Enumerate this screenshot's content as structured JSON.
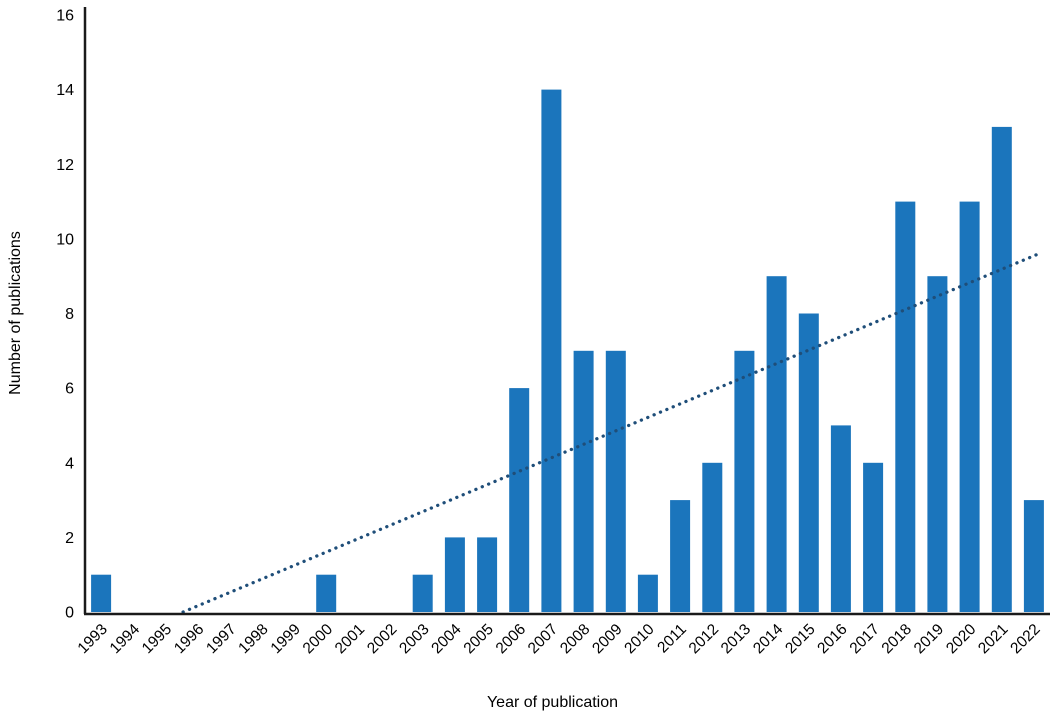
{
  "chart_data": {
    "type": "bar",
    "title": "",
    "xlabel": "Year of publication",
    "ylabel": "Number of publications",
    "categories": [
      "1993",
      "1994",
      "1995",
      "1996",
      "1997",
      "1998",
      "1999",
      "2000",
      "2001",
      "2002",
      "2003",
      "2004",
      "2005",
      "2006",
      "2007",
      "2008",
      "2009",
      "2010",
      "2011",
      "2012",
      "2013",
      "2014",
      "2015",
      "2016",
      "2017",
      "2018",
      "2019",
      "2020",
      "2021",
      "2022"
    ],
    "values": [
      1,
      0,
      0,
      0,
      0,
      0,
      0,
      1,
      0,
      0,
      1,
      2,
      2,
      6,
      14,
      7,
      7,
      1,
      3,
      4,
      7,
      9,
      8,
      5,
      4,
      11,
      9,
      11,
      13,
      3
    ],
    "ylim": [
      0,
      16
    ],
    "yticks": [
      0,
      2,
      4,
      6,
      8,
      10,
      12,
      14,
      16
    ],
    "grid": false,
    "legend": "none",
    "bar_color": "#1B75BC",
    "axis_color": "#1a1a1a",
    "text_color": "#000000",
    "trendline": {
      "style": "dotted",
      "color": "#1F4E79",
      "x_start_year": 1995.55,
      "y_start": 0,
      "x_end_year": 2022.15,
      "y_end": 9.6
    }
  }
}
